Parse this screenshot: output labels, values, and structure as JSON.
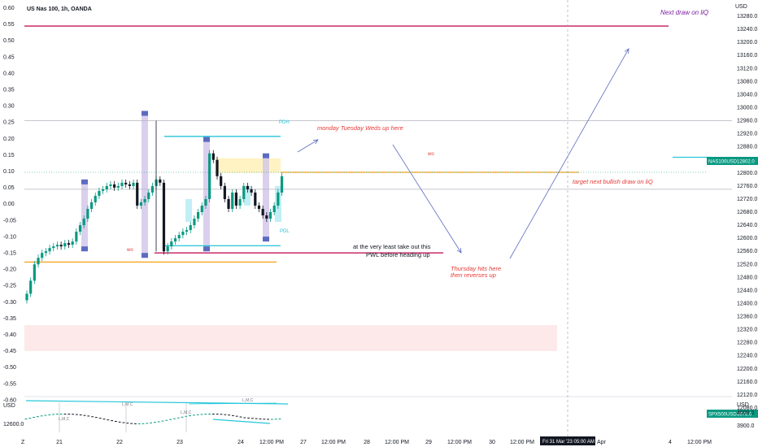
{
  "header": {
    "title": "US Nas 100, 1h, OANDA"
  },
  "colors": {
    "up": "#089981",
    "down": "#131722",
    "teal": "#26c6da",
    "magenta": "#c2185b",
    "orange": "#f5a623",
    "purple": "#7b1fa2",
    "red": "#e53935",
    "zone_blue": "#5c6bc0"
  },
  "chart_data": {
    "type": "candlestick",
    "left_axis": {
      "ticks": [
        "0.60",
        "0.55",
        "0.50",
        "0.45",
        "0.40",
        "0.35",
        "0.30",
        "0.25",
        "0.20",
        "0.15",
        "0.10",
        "0.05",
        "0.00",
        "-0.05",
        "-0.10",
        "-0.15",
        "-0.20",
        "-0.25",
        "-0.30",
        "-0.35",
        "-0.40",
        "-0.45",
        "-0.50",
        "-0.55",
        "-0.60"
      ]
    },
    "right_axis": {
      "ticks": [
        "13280.0",
        "13240.0",
        "13200.0",
        "13160.0",
        "13120.0",
        "13080.0",
        "13040.0",
        "13000.0",
        "12960.0",
        "12920.0",
        "12880.0",
        "12840.0",
        "12800.0",
        "12760.0",
        "12720.0",
        "12680.0",
        "12640.0",
        "12600.0",
        "12560.0",
        "12520.0",
        "12480.0",
        "12440.0",
        "12400.0",
        "12360.0",
        "12320.0",
        "12280.0",
        "12240.0",
        "12200.0",
        "12160.0",
        "12120.0",
        "12080.0"
      ],
      "ylim": [
        12060,
        13300
      ]
    },
    "x_axis": {
      "ticks": [
        "21",
        "22",
        "23",
        "24",
        "12:00 PM",
        "27",
        "12:00 PM",
        "28",
        "12:00 PM",
        "29",
        "12:00 PM",
        "30",
        "12:00 PM",
        "4",
        "12:00 PM"
      ]
    },
    "crosshair_x_label": "Fri 31 Mar '23   05:00 AM",
    "apr_label": "Apr",
    "z_label": "Z",
    "price_labels": [
      {
        "symbol": "NAS100USD",
        "value": "12802.0",
        "price": 12802
      },
      {
        "symbol": "SPX500USD",
        "value": "3978.0"
      }
    ],
    "levels": [
      {
        "name": "Next draw on liQ",
        "price": 13250,
        "color": "magenta"
      },
      {
        "name": "weekly high line",
        "price": 12960,
        "color": "gray"
      },
      {
        "name": "PDH",
        "price": 12912,
        "color": "teal"
      },
      {
        "name": "right teal level",
        "price": 12848,
        "color": "teal"
      },
      {
        "name": "wo",
        "price": 12802,
        "color": "orange"
      },
      {
        "name": "target next bullish draw on liQ",
        "price": 12750,
        "color": "gray"
      },
      {
        "name": "PDL",
        "price": 12577,
        "color": "teal"
      },
      {
        "name": "PWL",
        "price": 12555,
        "color": "magenta"
      },
      {
        "name": "wo left",
        "price": 12527,
        "color": "orange"
      }
    ],
    "annotations": {
      "pdh": "PDH",
      "pdl": "PDL",
      "wo_right": "wo",
      "wo_left": "wo",
      "mtw": "monday Tuesday Weds up here",
      "pwl_line1": "at the very least take out this",
      "pwl_line2": "PWL before heading up",
      "thu_line1": "Thursday hits here",
      "thu_line2": "then reverses up",
      "target": "target next bullish draw on liQ",
      "nextdraw": "Next draw on liQ"
    },
    "series_close": [
      12430,
      12470,
      12520,
      12540,
      12555,
      12560,
      12570,
      12575,
      12580,
      12575,
      12585,
      12580,
      12590,
      12620,
      12640,
      12660,
      12690,
      12710,
      12730,
      12745,
      12750,
      12760,
      12765,
      12755,
      12760,
      12770,
      12765,
      12760,
      12770,
      12700,
      12710,
      12720,
      12740,
      12760,
      12780,
      12770,
      12560,
      12575,
      12590,
      12600,
      12610,
      12620,
      12625,
      12640,
      12660,
      12680,
      12700,
      12720,
      12860,
      12840,
      12790,
      12760,
      12720,
      12690,
      12740,
      12700,
      12720,
      12760,
      12750,
      12740,
      12700,
      12690,
      12670,
      12660,
      12680,
      12700,
      12740,
      12790
    ],
    "sub_chart": {
      "symbol_label": "SPX500USD",
      "usd_label": "USD",
      "left_tick": "12600.0",
      "right_ticks": [
        "4000.0",
        "3900.0"
      ],
      "markers": [
        "L,M,C",
        "L,M,C",
        "L,M,C",
        "L,M,C"
      ]
    },
    "usd_label": "USD",
    "grid": false
  }
}
